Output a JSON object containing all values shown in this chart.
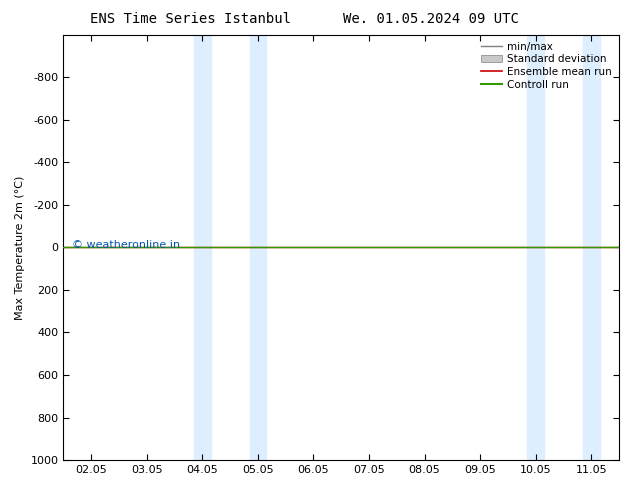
{
  "title_left": "ENS Time Series Istanbul",
  "title_right": "We. 01.05.2024 09 UTC",
  "ylabel": "Max Temperature 2m (°C)",
  "ylim": [
    -1000,
    1000
  ],
  "yticks": [
    -800,
    -600,
    -400,
    -200,
    0,
    200,
    400,
    600,
    800,
    1000
  ],
  "xtick_labels": [
    "02.05",
    "03.05",
    "04.05",
    "05.05",
    "06.05",
    "07.05",
    "08.05",
    "09.05",
    "10.05",
    "11.05"
  ],
  "xtick_positions": [
    0,
    1,
    2,
    3,
    4,
    5,
    6,
    7,
    8,
    9
  ],
  "xlim": [
    -0.5,
    9.5
  ],
  "band_regions": [
    [
      1.85,
      2.15
    ],
    [
      2.85,
      3.15
    ],
    [
      7.85,
      8.15
    ],
    [
      8.85,
      9.15
    ]
  ],
  "control_run_y": 0,
  "ensemble_mean_y": 0,
  "legend_colors": [
    "#808080",
    "#c8c8c8",
    "#cc0000",
    "#339900"
  ],
  "watermark": "© weatheronline.in",
  "watermark_color": "#0055aa",
  "background_color": "#ffffff",
  "band_color": "#ddeeff",
  "fig_width": 6.34,
  "fig_height": 4.9,
  "dpi": 100
}
